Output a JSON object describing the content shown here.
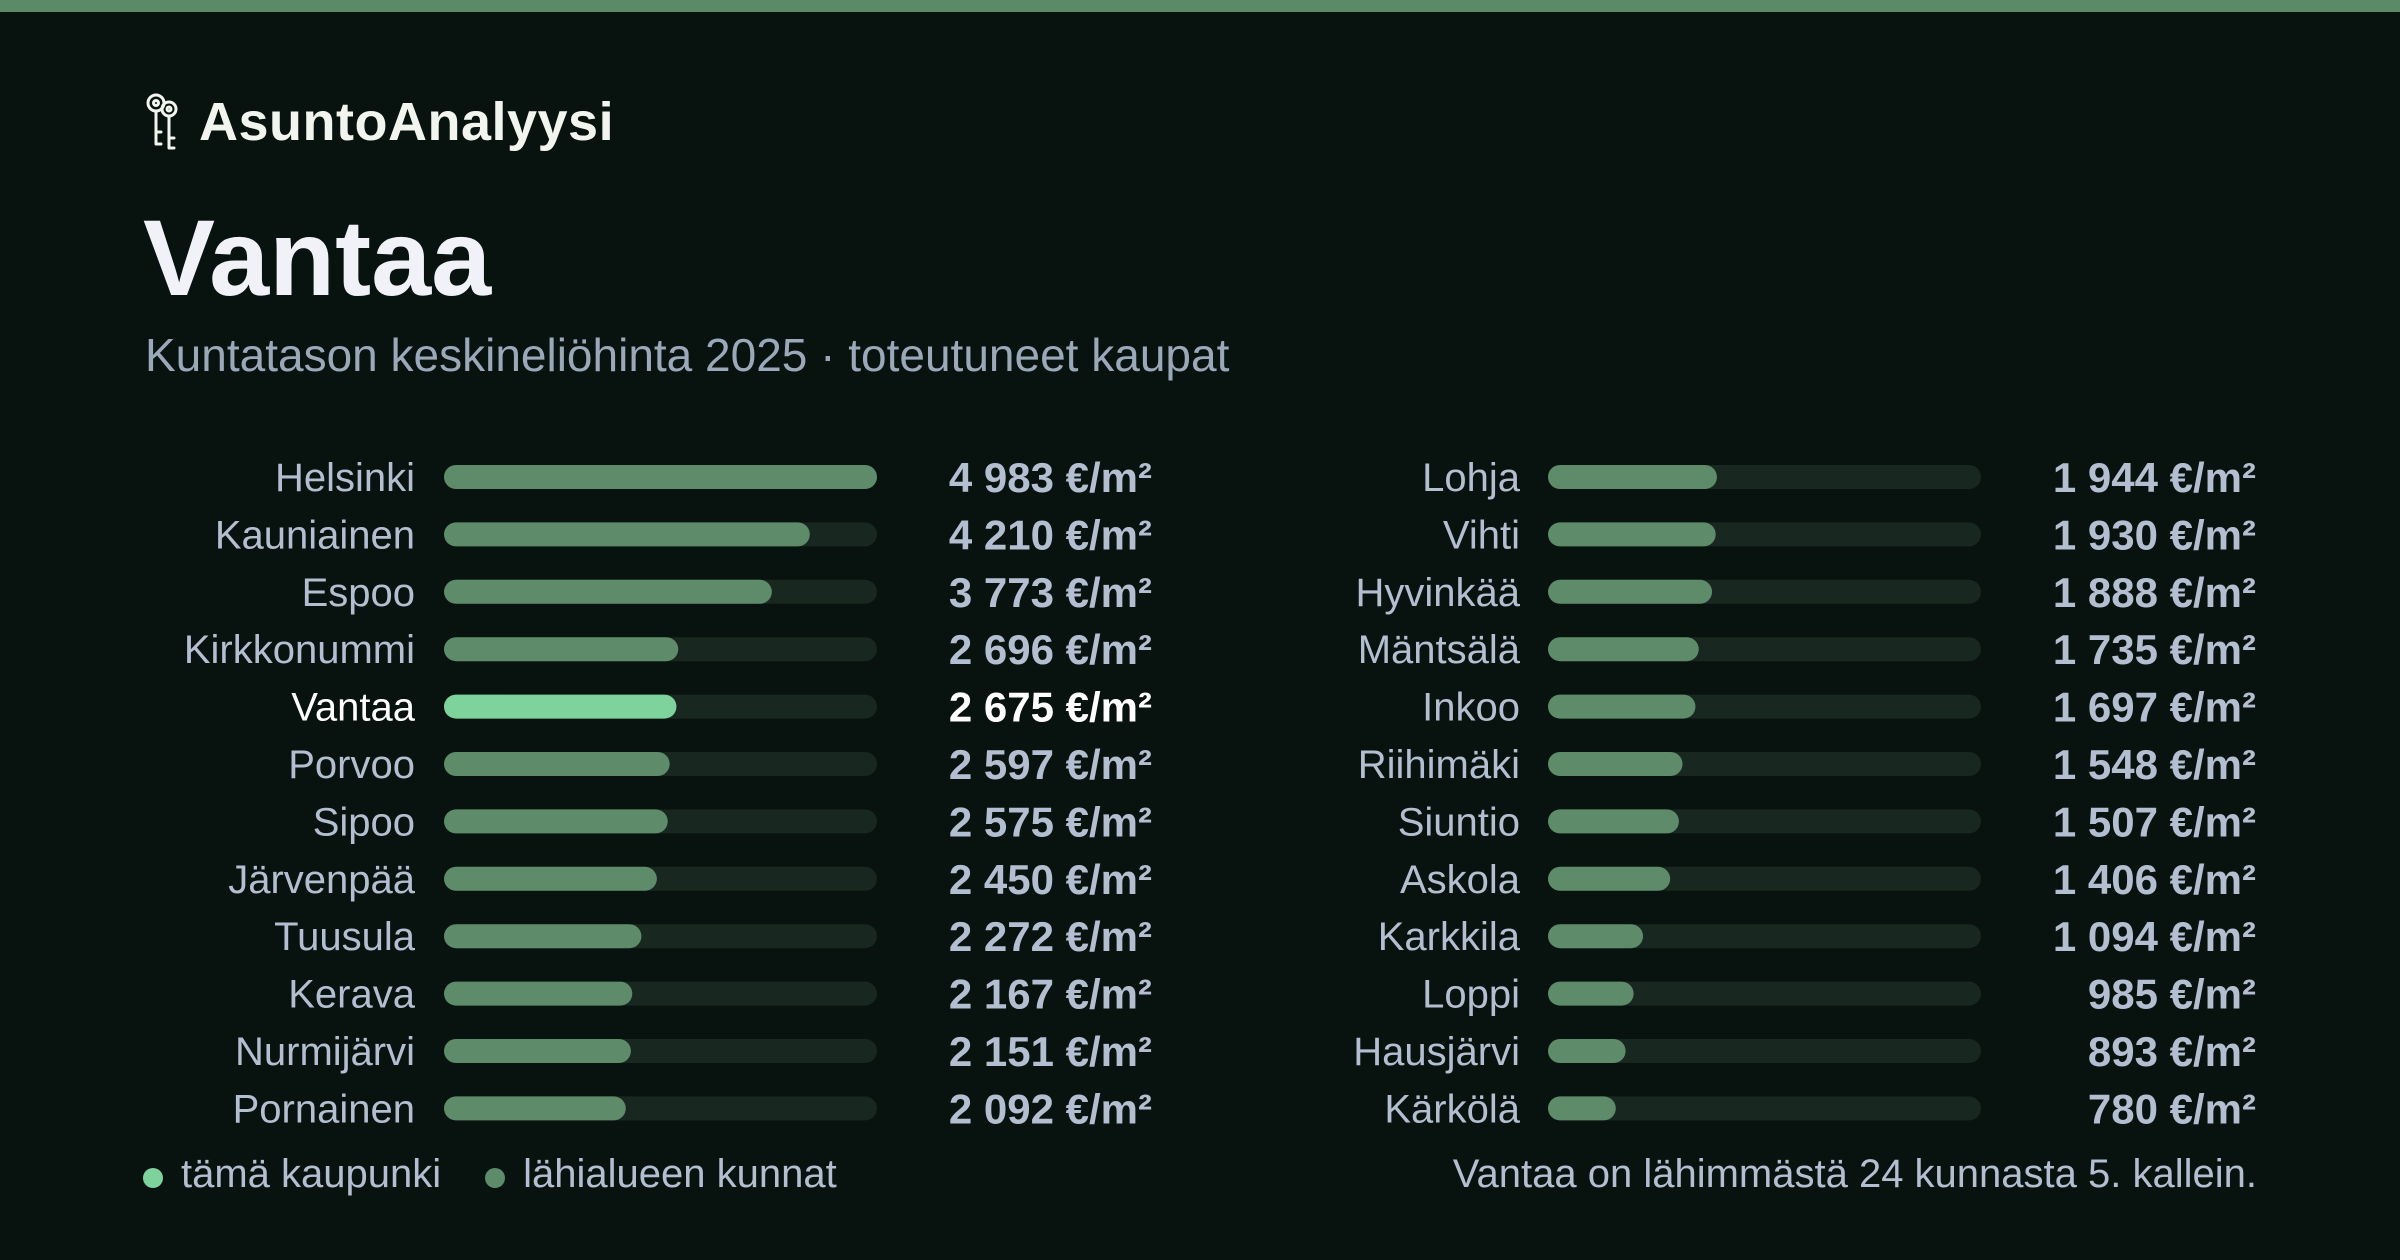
{
  "brand": {
    "name": "AsuntoAnalyysi",
    "icon": "keys-icon"
  },
  "header": {
    "title": "Vantaa",
    "subtitle": "Kuntatason keskineliöhinta 2025 · toteutuneet kaupat"
  },
  "colors": {
    "background": "#08130f",
    "accent_bar": "#5a8a66",
    "highlight_bar": "#7ed39d",
    "normal_bar": "#5e8b6a",
    "track": "#18271f"
  },
  "chart_data": {
    "type": "bar",
    "orientation": "horizontal",
    "unit": "€/m²",
    "highlight": "Vantaa",
    "xlim": [
      0,
      4983
    ],
    "columns": [
      {
        "categories": [
          "Helsinki",
          "Kauniainen",
          "Espoo",
          "Kirkkonummi",
          "Vantaa",
          "Porvoo",
          "Sipoo",
          "Järvenpää",
          "Tuusula",
          "Kerava",
          "Nurmijärvi",
          "Pornainen"
        ],
        "values": [
          4983,
          4210,
          3773,
          2696,
          2675,
          2597,
          2575,
          2450,
          2272,
          2167,
          2151,
          2092
        ],
        "labels": [
          "4 983 €/m²",
          "4 210 €/m²",
          "3 773 €/m²",
          "2 696 €/m²",
          "2 675 €/m²",
          "2 597 €/m²",
          "2 575 €/m²",
          "2 450 €/m²",
          "2 272 €/m²",
          "2 167 €/m²",
          "2 151 €/m²",
          "2 092 €/m²"
        ]
      },
      {
        "categories": [
          "Lohja",
          "Vihti",
          "Hyvinkää",
          "Mäntsälä",
          "Inkoo",
          "Riihimäki",
          "Siuntio",
          "Askola",
          "Karkkila",
          "Loppi",
          "Hausjärvi",
          "Kärkölä"
        ],
        "values": [
          1944,
          1930,
          1888,
          1735,
          1697,
          1548,
          1507,
          1406,
          1094,
          985,
          893,
          780
        ],
        "labels": [
          "1 944 €/m²",
          "1 930 €/m²",
          "1 888 €/m²",
          "1 735 €/m²",
          "1 697 €/m²",
          "1 548 €/m²",
          "1 507 €/m²",
          "1 406 €/m²",
          "1 094 €/m²",
          "985 €/m²",
          "893 €/m²",
          "780 €/m²"
        ]
      }
    ]
  },
  "legend": {
    "this_city": "tämä kaupunki",
    "nearby": "lähialueen kunnat"
  },
  "footnote": "Vantaa on lähimmästä 24 kunnasta 5. kallein."
}
